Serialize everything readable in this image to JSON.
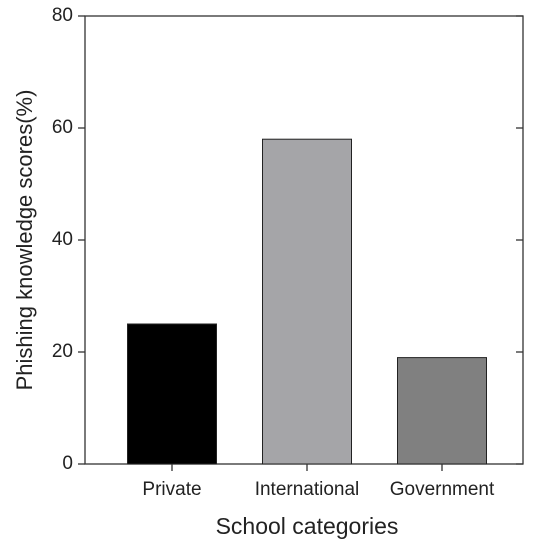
{
  "chart_data": {
    "type": "bar",
    "x_label": "School categories",
    "y_label": "Phishing knowledge scores(%)",
    "categories": [
      "Private",
      "International",
      "Government"
    ],
    "values": [
      25,
      58,
      19
    ],
    "colors": [
      "#000000",
      "#a5a5a8",
      "#808080"
    ],
    "ylim": [
      0,
      80
    ],
    "yticks": [
      0,
      20,
      40,
      60,
      80
    ],
    "grid": false
  }
}
